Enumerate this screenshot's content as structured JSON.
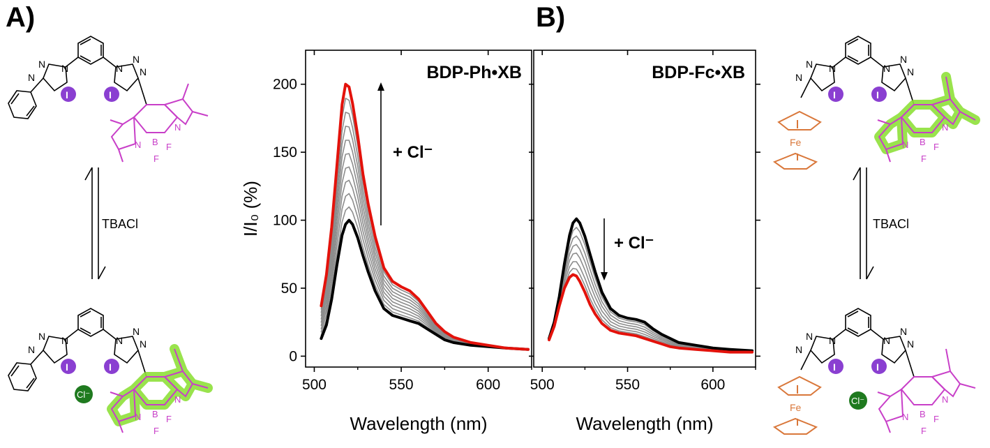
{
  "panels": {
    "a_label": "A)",
    "b_label": "B)"
  },
  "equilibrium": {
    "reagent_left": "TBACl",
    "reagent_right": "TBACl"
  },
  "structures": {
    "atoms": {
      "nitrogen": "N",
      "iodine": "I",
      "boron": "B",
      "fluorine": "F",
      "iron": "Fe",
      "chloride": "Cl⁻"
    }
  },
  "colors": {
    "initial": "#000000",
    "final": "#e3120b",
    "intermediate": "#8c8c8c",
    "bodipy": "#c83fc8",
    "halo": "#8fe03a",
    "ferrocene": "#d9773a",
    "iodine": "#8a3fd1",
    "chloride": "#1f7a1f"
  },
  "chart_data": [
    {
      "type": "line",
      "title": "BDP-Ph•XB",
      "xlabel": "Wavelength (nm)",
      "ylabel": "I/I₀ (%)",
      "xlim": [
        495,
        625
      ],
      "ylim": [
        -8,
        225
      ],
      "xticks": [
        "500",
        "550",
        "600"
      ],
      "yticks": [
        "0",
        "50",
        "100",
        "150",
        "200"
      ],
      "annotation": "+ Cl⁻",
      "arrow_direction": "up",
      "x": [
        504,
        507,
        510,
        513,
        516,
        518,
        520,
        522,
        525,
        528,
        531,
        535,
        540,
        545,
        550,
        555,
        560,
        565,
        570,
        575,
        580,
        590,
        600,
        610,
        623
      ],
      "shape_initial": [
        13,
        23,
        42,
        67,
        89,
        97,
        100,
        97,
        87,
        74,
        62,
        48,
        35,
        30,
        28,
        26,
        24,
        20,
        16,
        12,
        10,
        8,
        7,
        6,
        5
      ],
      "shape_final": [
        37,
        60,
        95,
        140,
        185,
        200,
        198,
        186,
        162,
        134,
        112,
        88,
        65,
        55,
        51,
        48,
        42,
        33,
        24,
        18,
        14,
        10,
        8,
        6,
        5
      ],
      "series": [
        {
          "name": "",
          "role": "initial",
          "scale": 0
        },
        {
          "name": "",
          "role": "intermediate",
          "scale": 0.1
        },
        {
          "name": "",
          "role": "intermediate",
          "scale": 0.2
        },
        {
          "name": "",
          "role": "intermediate",
          "scale": 0.3
        },
        {
          "name": "",
          "role": "intermediate",
          "scale": 0.4
        },
        {
          "name": "",
          "role": "intermediate",
          "scale": 0.5
        },
        {
          "name": "",
          "role": "intermediate",
          "scale": 0.6
        },
        {
          "name": "",
          "role": "intermediate",
          "scale": 0.7
        },
        {
          "name": "",
          "role": "intermediate",
          "scale": 0.8
        },
        {
          "name": "",
          "role": "intermediate",
          "scale": 0.9
        },
        {
          "name": "",
          "role": "final",
          "scale": 1
        }
      ]
    },
    {
      "type": "line",
      "title": "BDP-Fc•XB",
      "xlabel": "Wavelength (nm)",
      "ylabel": "",
      "xlim": [
        495,
        625
      ],
      "ylim": [
        -8,
        225
      ],
      "xticks": [
        "500",
        "550",
        "600"
      ],
      "yticks": [],
      "annotation": "+ Cl⁻",
      "arrow_direction": "down",
      "x": [
        504,
        507,
        510,
        513,
        516,
        518,
        520,
        522,
        525,
        528,
        531,
        535,
        540,
        545,
        550,
        555,
        560,
        565,
        570,
        575,
        580,
        590,
        600,
        610,
        623
      ],
      "shape_initial": [
        13,
        25,
        44,
        68,
        89,
        98,
        101,
        98,
        88,
        75,
        62,
        47,
        35,
        30,
        28,
        27,
        25,
        20,
        16,
        13,
        10,
        8,
        6,
        5,
        4
      ],
      "shape_final": [
        12,
        22,
        37,
        50,
        58,
        60,
        59,
        55,
        47,
        38,
        31,
        24,
        19,
        17,
        16,
        15,
        13,
        11,
        9,
        7,
        6,
        5,
        4,
        3,
        3
      ],
      "series": [
        {
          "name": "",
          "role": "initial",
          "scale": 0
        },
        {
          "name": "",
          "role": "intermediate",
          "scale": 0.15
        },
        {
          "name": "",
          "role": "intermediate",
          "scale": 0.3
        },
        {
          "name": "",
          "role": "intermediate",
          "scale": 0.45
        },
        {
          "name": "",
          "role": "intermediate",
          "scale": 0.6
        },
        {
          "name": "",
          "role": "intermediate",
          "scale": 0.75
        },
        {
          "name": "",
          "role": "intermediate",
          "scale": 0.88
        },
        {
          "name": "",
          "role": "final",
          "scale": 1
        }
      ]
    }
  ]
}
